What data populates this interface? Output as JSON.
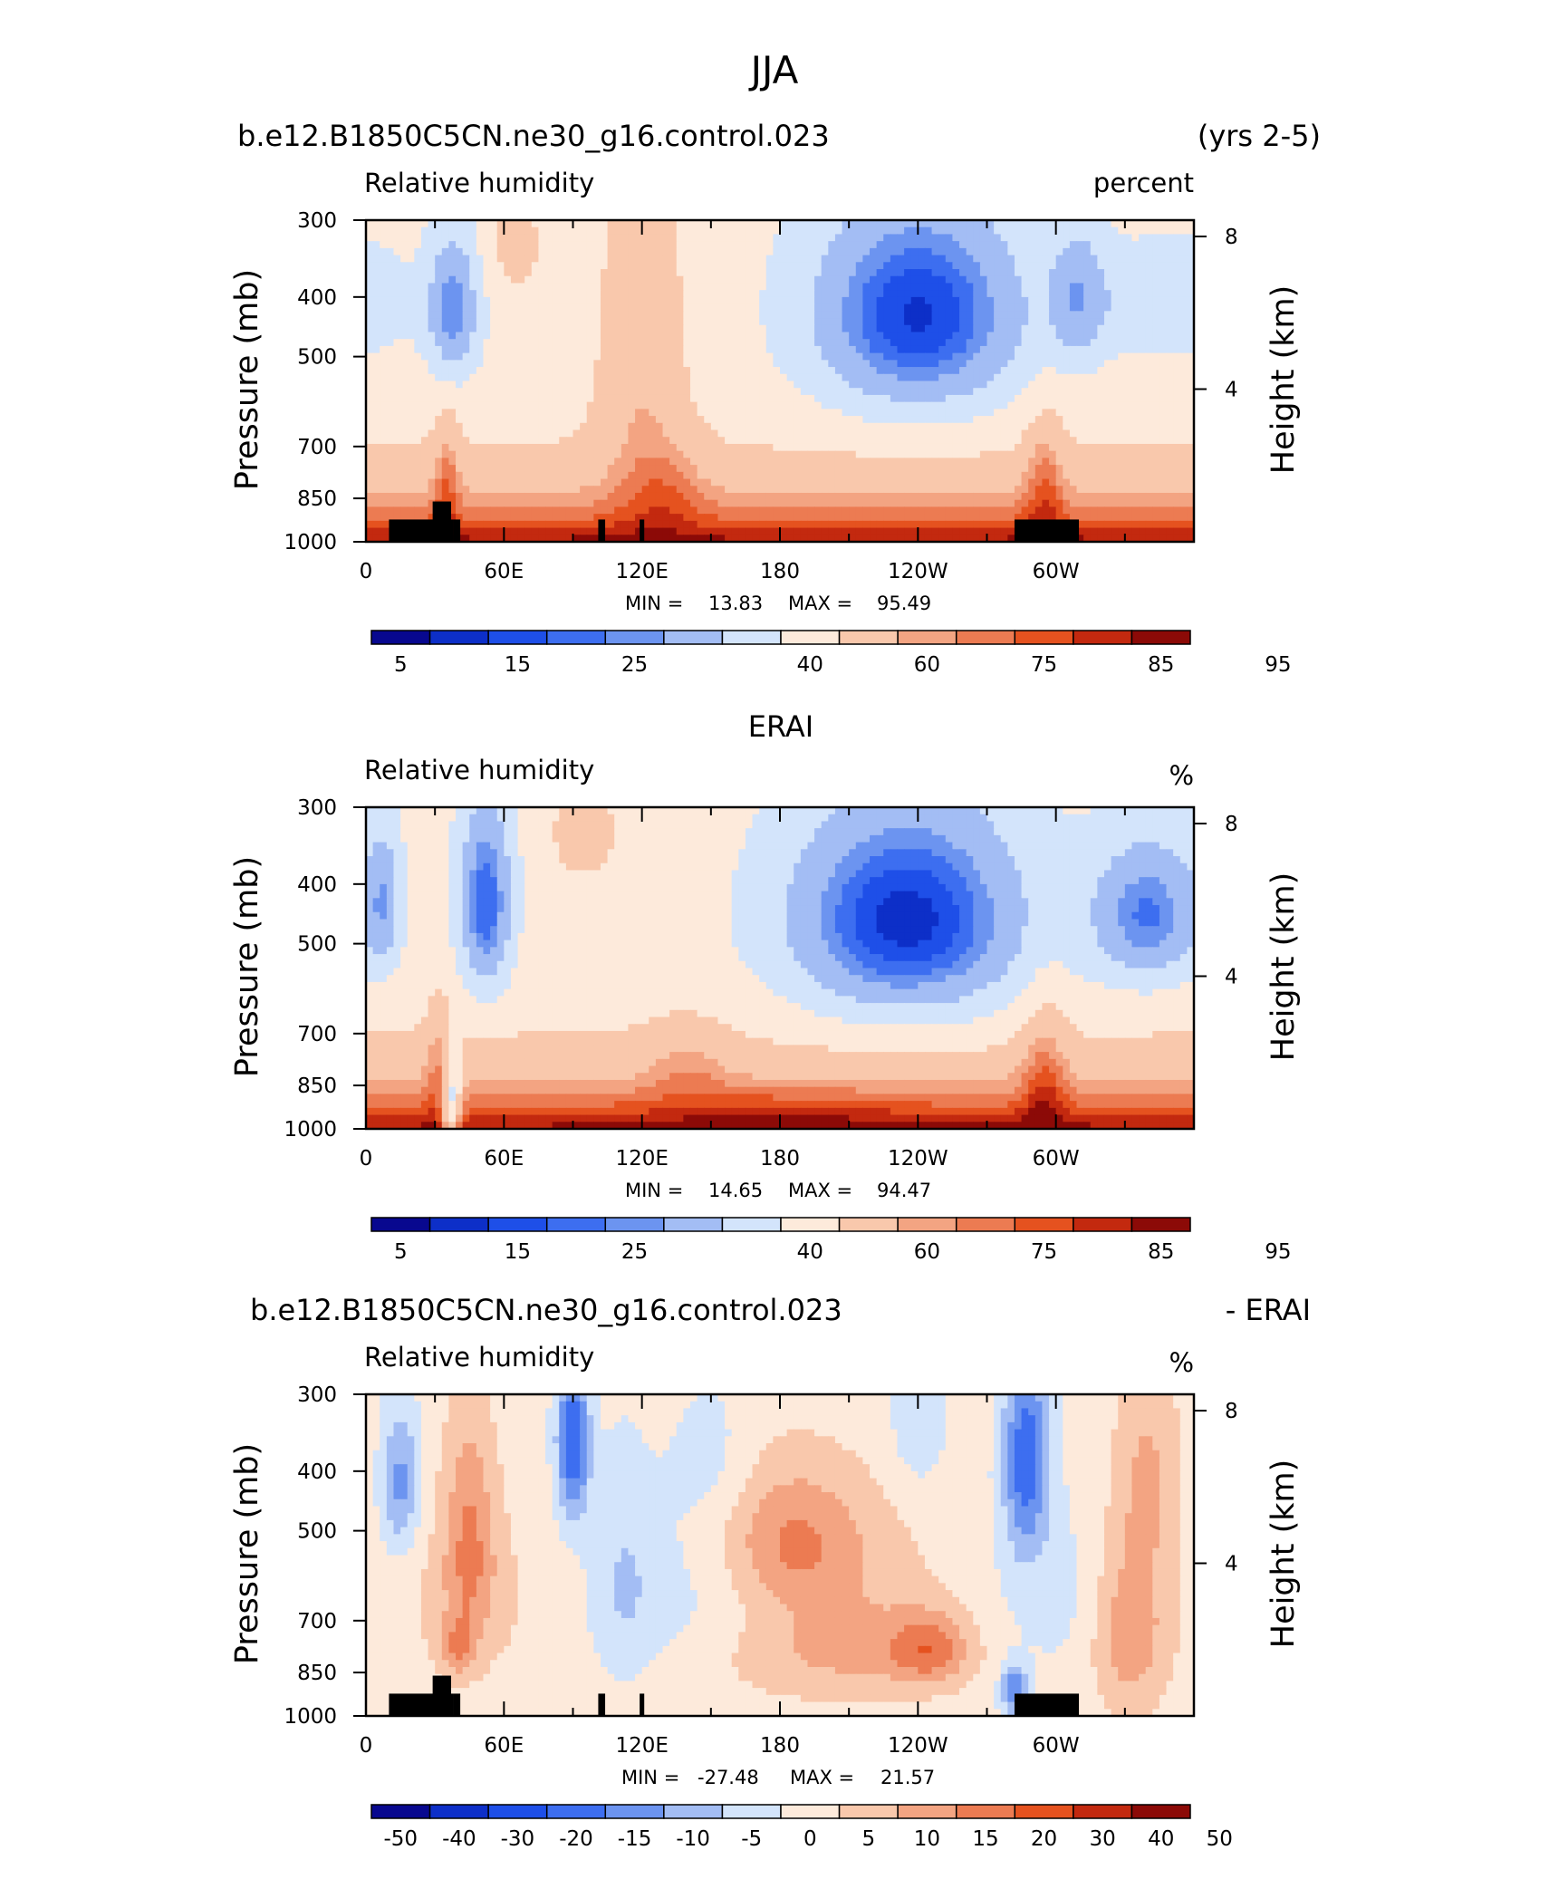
{
  "page_title": "JJA",
  "colors": {
    "levels": [
      "#08088f",
      "#0d2fc8",
      "#1e4fe8",
      "#3d6ef0",
      "#6c94f0",
      "#a3bdf4",
      "#d3e4fb",
      "#fdeadb",
      "#f9c8ac",
      "#f3a482",
      "#ec7b52",
      "#e5521f",
      "#c3290f",
      "#8c0a07"
    ],
    "land": "#000000"
  },
  "chart_data": [
    {
      "type": "heatmap",
      "title": "b.e12.B1850C5CN.ne30_g16.control.023",
      "title_right": "(yrs 2-5)",
      "subtitle_left": "Relative humidity",
      "subtitle_right": "percent",
      "ylabel": "Pressure (mb)",
      "ylabel_right": "Height (km)",
      "x_ticks": [
        "0",
        "60E",
        "120E",
        "180",
        "120W",
        "60W"
      ],
      "y_ticks": [
        "300",
        "400",
        "500",
        "700",
        "850",
        "1000"
      ],
      "y_right_ticks": [
        "8",
        "4"
      ],
      "min_label": "MIN =",
      "min_value": "13.83",
      "max_label": "MAX =",
      "max_value": "95.49",
      "colorbar_labels": [
        "5",
        "15",
        "25",
        "40",
        "60",
        "75",
        "85",
        "95"
      ],
      "ylim": [
        1000,
        300
      ],
      "xlim": [
        0,
        360
      ],
      "mode": "model",
      "land_mask": true
    },
    {
      "type": "heatmap",
      "title": "ERAI",
      "subtitle_left": "Relative humidity",
      "subtitle_right": "%",
      "ylabel": "Pressure (mb)",
      "ylabel_right": "Height (km)",
      "x_ticks": [
        "0",
        "60E",
        "120E",
        "180",
        "120W",
        "60W"
      ],
      "y_ticks": [
        "300",
        "400",
        "500",
        "700",
        "850",
        "1000"
      ],
      "y_right_ticks": [
        "8",
        "4"
      ],
      "min_label": "MIN =",
      "min_value": "14.65",
      "max_label": "MAX =",
      "max_value": "94.47",
      "colorbar_labels": [
        "5",
        "15",
        "25",
        "40",
        "60",
        "75",
        "85",
        "95"
      ],
      "ylim": [
        1000,
        300
      ],
      "xlim": [
        0,
        360
      ],
      "mode": "obs",
      "land_mask": false
    },
    {
      "type": "heatmap",
      "title": "b.e12.B1850C5CN.ne30_g16.control.023",
      "title_right": "- ERAI",
      "subtitle_left": "Relative humidity",
      "subtitle_right": "%",
      "ylabel": "Pressure (mb)",
      "ylabel_right": "Height (km)",
      "x_ticks": [
        "0",
        "60E",
        "120E",
        "180",
        "120W",
        "60W"
      ],
      "y_ticks": [
        "300",
        "400",
        "500",
        "700",
        "850",
        "1000"
      ],
      "y_right_ticks": [
        "8",
        "4"
      ],
      "min_label": "MIN =",
      "min_value": "-27.48",
      "max_label": "MAX =",
      "max_value": "21.57",
      "colorbar_labels": [
        "-50",
        "-40",
        "-30",
        "-20",
        "-15",
        "-10",
        "-5",
        "0",
        "5",
        "10",
        "15",
        "20",
        "30",
        "40",
        "50"
      ],
      "ylim": [
        1000,
        300
      ],
      "xlim": [
        0,
        360
      ],
      "mode": "diff",
      "land_mask": true
    }
  ]
}
